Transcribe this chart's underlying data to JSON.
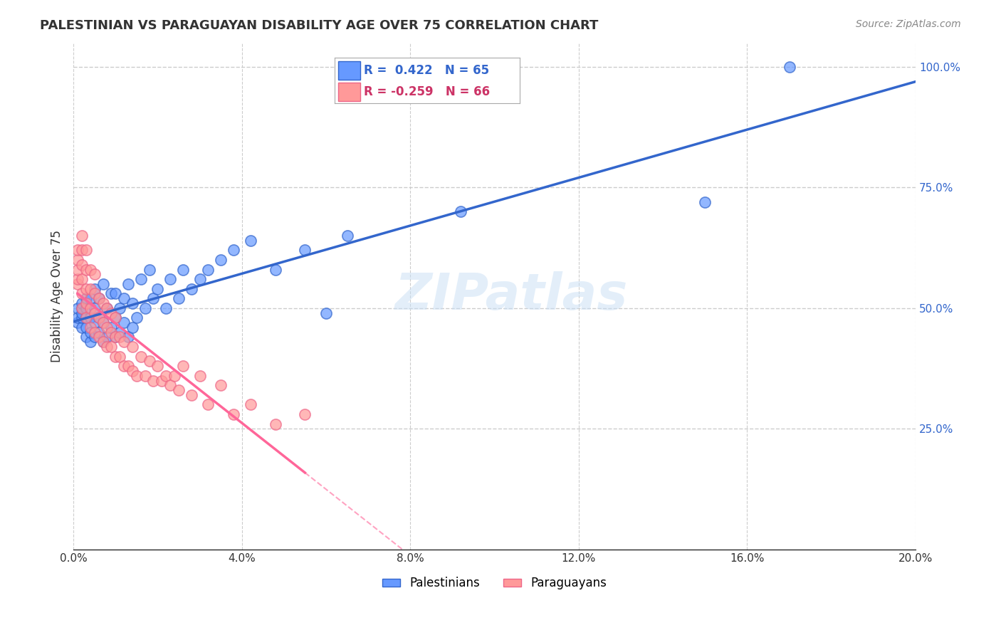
{
  "title": "PALESTINIAN VS PARAGUAYAN DISABILITY AGE OVER 75 CORRELATION CHART",
  "source": "Source: ZipAtlas.com",
  "ylabel": "Disability Age Over 75",
  "watermark": "ZIPatlas",
  "legend": {
    "blue_R": "0.422",
    "blue_N": "65",
    "pink_R": "-0.259",
    "pink_N": "66"
  },
  "blue_color": "#6699ff",
  "pink_color": "#ff9999",
  "trend_blue": "#3366cc",
  "trend_pink": "#ff6699",
  "palestinians": {
    "x": [
      0.001,
      0.001,
      0.001,
      0.002,
      0.002,
      0.002,
      0.002,
      0.002,
      0.003,
      0.003,
      0.003,
      0.003,
      0.003,
      0.004,
      0.004,
      0.004,
      0.004,
      0.005,
      0.005,
      0.005,
      0.005,
      0.006,
      0.006,
      0.006,
      0.007,
      0.007,
      0.007,
      0.008,
      0.008,
      0.009,
      0.009,
      0.01,
      0.01,
      0.01,
      0.011,
      0.011,
      0.012,
      0.012,
      0.013,
      0.013,
      0.014,
      0.014,
      0.015,
      0.016,
      0.017,
      0.018,
      0.019,
      0.02,
      0.022,
      0.023,
      0.025,
      0.026,
      0.028,
      0.03,
      0.032,
      0.035,
      0.038,
      0.042,
      0.048,
      0.055,
      0.06,
      0.065,
      0.092,
      0.15,
      0.17
    ],
    "y": [
      0.47,
      0.48,
      0.5,
      0.46,
      0.48,
      0.49,
      0.5,
      0.51,
      0.44,
      0.46,
      0.48,
      0.5,
      0.52,
      0.43,
      0.45,
      0.48,
      0.52,
      0.44,
      0.47,
      0.5,
      0.54,
      0.45,
      0.48,
      0.52,
      0.43,
      0.47,
      0.55,
      0.44,
      0.5,
      0.46,
      0.53,
      0.44,
      0.48,
      0.53,
      0.45,
      0.5,
      0.47,
      0.52,
      0.44,
      0.55,
      0.46,
      0.51,
      0.48,
      0.56,
      0.5,
      0.58,
      0.52,
      0.54,
      0.5,
      0.56,
      0.52,
      0.58,
      0.54,
      0.56,
      0.58,
      0.6,
      0.62,
      0.64,
      0.58,
      0.62,
      0.49,
      0.65,
      0.7,
      0.72,
      1.0
    ]
  },
  "paraguayans": {
    "x": [
      0.001,
      0.001,
      0.001,
      0.001,
      0.001,
      0.002,
      0.002,
      0.002,
      0.002,
      0.002,
      0.002,
      0.003,
      0.003,
      0.003,
      0.003,
      0.003,
      0.004,
      0.004,
      0.004,
      0.004,
      0.005,
      0.005,
      0.005,
      0.005,
      0.006,
      0.006,
      0.006,
      0.007,
      0.007,
      0.007,
      0.008,
      0.008,
      0.008,
      0.009,
      0.009,
      0.009,
      0.01,
      0.01,
      0.01,
      0.011,
      0.011,
      0.012,
      0.012,
      0.013,
      0.014,
      0.014,
      0.015,
      0.016,
      0.017,
      0.018,
      0.019,
      0.02,
      0.021,
      0.022,
      0.023,
      0.024,
      0.025,
      0.026,
      0.028,
      0.03,
      0.032,
      0.035,
      0.038,
      0.042,
      0.048,
      0.055
    ],
    "y": [
      0.55,
      0.56,
      0.58,
      0.6,
      0.62,
      0.5,
      0.53,
      0.56,
      0.59,
      0.62,
      0.65,
      0.48,
      0.51,
      0.54,
      0.58,
      0.62,
      0.46,
      0.5,
      0.54,
      0.58,
      0.45,
      0.49,
      0.53,
      0.57,
      0.44,
      0.48,
      0.52,
      0.43,
      0.47,
      0.51,
      0.42,
      0.46,
      0.5,
      0.42,
      0.45,
      0.49,
      0.4,
      0.44,
      0.48,
      0.4,
      0.44,
      0.38,
      0.43,
      0.38,
      0.37,
      0.42,
      0.36,
      0.4,
      0.36,
      0.39,
      0.35,
      0.38,
      0.35,
      0.36,
      0.34,
      0.36,
      0.33,
      0.38,
      0.32,
      0.36,
      0.3,
      0.34,
      0.28,
      0.3,
      0.26,
      0.28
    ]
  },
  "xlim": [
    0.0,
    0.2
  ],
  "ylim": [
    0.0,
    1.05
  ],
  "background_color": "#ffffff",
  "grid_color": "#cccccc"
}
